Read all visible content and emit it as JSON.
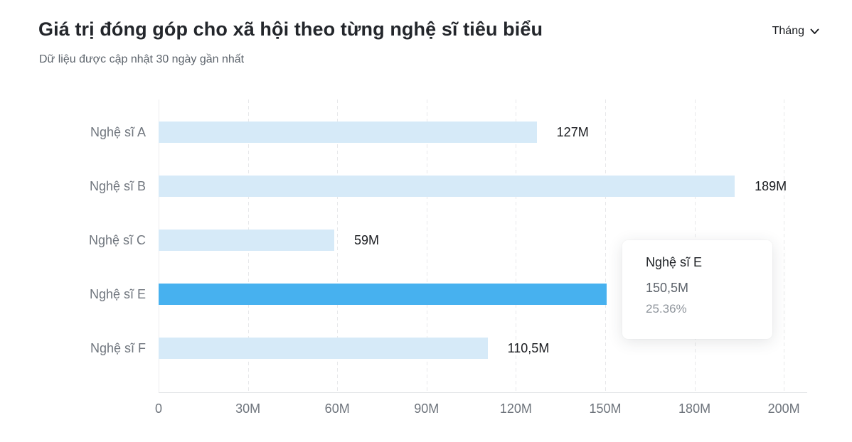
{
  "header": {
    "subtitle": "Dữ liệu được cập nhật 30 ngày gần nhất",
    "period_selector": {
      "label": "Tháng",
      "icon": "chevron-down"
    }
  },
  "chart_data": {
    "type": "bar",
    "orientation": "horizontal",
    "title": "Giá trị đóng góp cho xã hội theo từng nghệ sĩ tiêu biểu",
    "categories": [
      "Nghệ sĩ A",
      "Nghệ sĩ B",
      "Nghệ sĩ C",
      "Nghệ sĩ E",
      "Nghệ sĩ F"
    ],
    "values": [
      127,
      189,
      59,
      150.5,
      110.5
    ],
    "value_labels": [
      "127M",
      "189M",
      "59M",
      "150,5M",
      "110,5M"
    ],
    "value_label_visible": [
      true,
      true,
      true,
      false,
      true
    ],
    "highlighted_index": 3,
    "unit": "M",
    "x_ticks": {
      "values": [
        0,
        30,
        60,
        90,
        120,
        150,
        180,
        200
      ],
      "labels": [
        "0",
        "30M",
        "60M",
        "90M",
        "120M",
        "150M",
        "180M",
        "200M"
      ]
    },
    "xlim": [
      0,
      207
    ],
    "xlabel": "",
    "ylabel": "",
    "grid": "vertical-dashed",
    "legend": "none",
    "colors": {
      "bar": "#d6eaf8",
      "bar_highlight": "#47b1ef"
    }
  },
  "tooltip": {
    "title": "Nghệ sĩ E",
    "value": "150,5M",
    "percent": "25.36%"
  }
}
